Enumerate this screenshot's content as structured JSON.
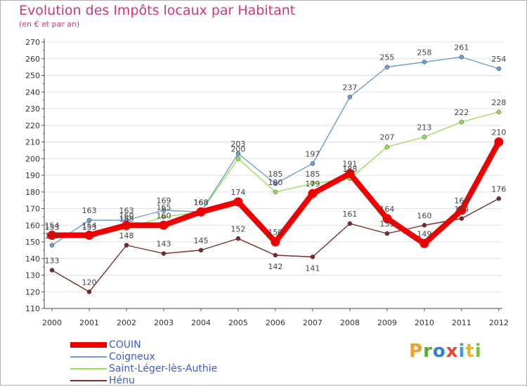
{
  "header": {
    "title": "Evolution des Impôts locaux par Habitant",
    "subtitle": "(en € et par an)"
  },
  "logo": {
    "text": "Proxiti",
    "colors": [
      "#f0a12c",
      "#5aa832",
      "#2f7fd1",
      "#e8452f",
      "#3a9fd8",
      "#e8b62a",
      "#7ac143"
    ]
  },
  "chart_data": {
    "type": "line",
    "x": [
      "2000",
      "2001",
      "2002",
      "2003",
      "2004",
      "2005",
      "2006",
      "2007",
      "2008",
      "2009",
      "2010",
      "2011",
      "2012"
    ],
    "ylim": [
      110,
      270
    ],
    "yticks": [
      "110",
      "120",
      "130",
      "140",
      "150",
      "160",
      "170",
      "180",
      "190",
      "200",
      "210",
      "220",
      "230",
      "240",
      "250",
      "260",
      "270"
    ],
    "grid": true,
    "legend_position": "bottom-left",
    "series": [
      {
        "name": "COUIN",
        "color": "#ee0000",
        "values": [
          154,
          154,
          160,
          160,
          168,
          174,
          150,
          179,
          191,
          164,
          149,
          169,
          210
        ]
      },
      {
        "name": "Coigneux",
        "color": "#6b9fd4",
        "values": [
          148,
          163,
          163,
          169,
          168,
          203,
          185,
          197,
          237,
          255,
          258,
          261,
          254
        ]
      },
      {
        "name": "Saint-Léger-lès-Authie",
        "color": "#99dd55",
        "values": [
          153,
          153,
          158,
          165,
          168,
          200,
          180,
          185,
          188,
          207,
          213,
          222,
          228
        ]
      },
      {
        "name": "Hénu",
        "color": "#7a2a2a",
        "values": [
          133,
          120,
          148,
          143,
          145,
          152,
          142,
          141,
          161,
          155,
          160,
          164,
          176
        ]
      }
    ]
  }
}
